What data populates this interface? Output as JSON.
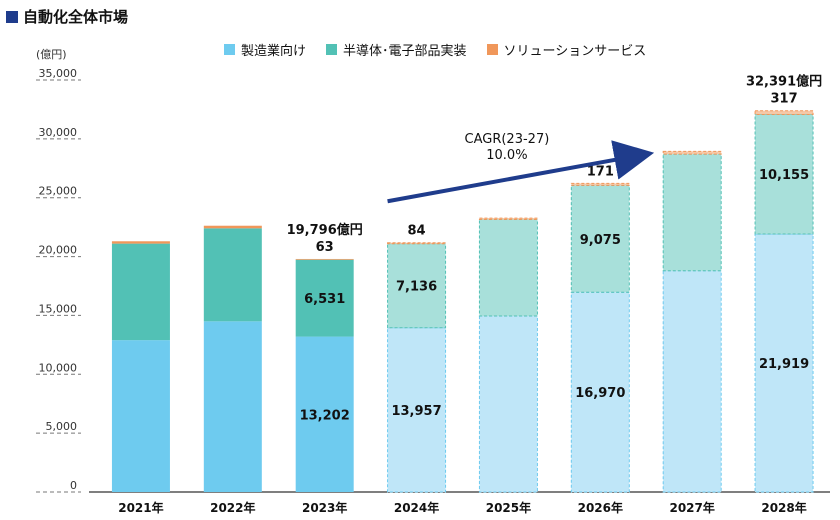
{
  "chart_data": {
    "type": "bar",
    "stacked": true,
    "title": "自動化全体市場",
    "unit_label": "(億円)",
    "categories": [
      "2021年",
      "2022年",
      "2023年",
      "2024年",
      "2025年",
      "2026年",
      "2027年",
      "2028年"
    ],
    "forecast_from_category": "2024年",
    "series": [
      {
        "name": "製造業向け",
        "color": "#6ecbef",
        "forecast_color": "#bfe6f8",
        "values": [
          12900,
          14500,
          13202,
          13957,
          14950,
          16970,
          18800,
          21919
        ]
      },
      {
        "name": "半導体･電子部品実装",
        "color": "#52c1b5",
        "forecast_color": "#a8e0da",
        "values": [
          8200,
          7900,
          6531,
          7136,
          8200,
          9075,
          9900,
          10155
        ]
      },
      {
        "name": "ソリューションサービス",
        "color": "#f0975a",
        "forecast_color": "#f6c9a8",
        "values": [
          200,
          220,
          63,
          84,
          120,
          171,
          240,
          317
        ]
      }
    ],
    "data_labels": [
      {
        "category_index": 2,
        "series_index": 0,
        "text": "13,202"
      },
      {
        "category_index": 2,
        "series_index": 1,
        "text": "6,531"
      },
      {
        "category_index": 3,
        "series_index": 0,
        "text": "13,957"
      },
      {
        "category_index": 3,
        "series_index": 1,
        "text": "7,136"
      },
      {
        "category_index": 5,
        "series_index": 0,
        "text": "16,970"
      },
      {
        "category_index": 5,
        "series_index": 1,
        "text": "9,075"
      },
      {
        "category_index": 7,
        "series_index": 0,
        "text": "21,919"
      },
      {
        "category_index": 7,
        "series_index": 1,
        "text": "10,155"
      }
    ],
    "top_labels": [
      {
        "category_index": 2,
        "lines": [
          "19,796億円",
          "63"
        ]
      },
      {
        "category_index": 3,
        "lines": [
          "84"
        ]
      },
      {
        "category_index": 5,
        "lines": [
          "171"
        ]
      },
      {
        "category_index": 7,
        "lines": [
          "32,391億円",
          "317"
        ]
      }
    ],
    "yticks": [
      0,
      5000,
      10000,
      15000,
      20000,
      25000,
      30000,
      35000
    ],
    "ytick_labels": [
      "0",
      "5,000",
      "10,000",
      "15,000",
      "20,000",
      "25,000",
      "30,000",
      "35,000"
    ],
    "ylim": [
      0,
      35000
    ],
    "annotation": {
      "text_line1": "CAGR(23-27)",
      "text_line2": "10.0%",
      "arrow_color": "#1f3c8c",
      "arrow_from": {
        "category_index": 3,
        "value": 24700
      },
      "arrow_to": {
        "category_index": 5.5,
        "value": 28700
      }
    }
  }
}
